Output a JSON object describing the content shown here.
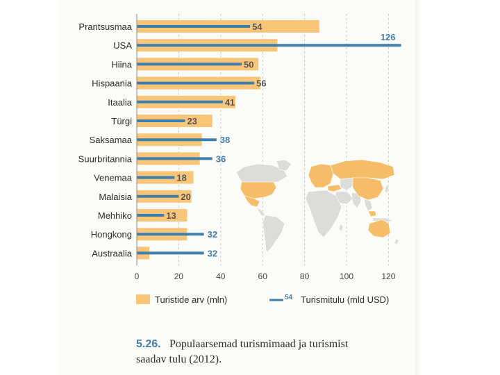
{
  "colors": {
    "bar_fill": "#f9c679",
    "line_color": "#3f7fae",
    "income_inside_label": "#555555",
    "income_outside_label": "#3f7fae",
    "map_land": "#dcdcd8",
    "map_highlight": "#f6bd68",
    "axis": "#888888",
    "grid": "#c9c9c9"
  },
  "chart_data": {
    "type": "bar",
    "categories": [
      "Prantsusmaa",
      "USA",
      "Hiina",
      "Hispaania",
      "Itaalia",
      "Türgi",
      "Saksamaa",
      "Suurbritannia",
      "Venemaa",
      "Malaisia",
      "Mehhiko",
      "Hongkong",
      "Austraalia"
    ],
    "series": [
      {
        "name": "Turistide arv (mln)",
        "kind": "bar",
        "values": [
          87,
          67,
          58,
          59,
          47,
          36,
          31,
          30,
          27,
          26,
          24,
          24,
          6
        ],
        "labeled": false
      },
      {
        "name": "Turismitulu (mld USD)",
        "kind": "line-marker",
        "values": [
          54,
          126,
          50,
          56,
          41,
          23,
          38,
          36,
          18,
          20,
          13,
          32,
          32
        ],
        "labeled": true
      }
    ],
    "x_ticks": [
      0,
      20,
      40,
      60,
      80,
      100,
      120
    ],
    "xlim": [
      0,
      130
    ],
    "grid": "vertical dashed",
    "legend_placement": "bottom",
    "xlabel": "",
    "ylabel": "",
    "title": ""
  },
  "legend": {
    "bar_label": "Turistide arv (mln)",
    "line_sample": "54",
    "line_label": "Turismitulu (mld USD)"
  },
  "caption": {
    "number": "5.26.",
    "line1": "Populaarsemad turismimaad ja turismist",
    "line2": "saadav tulu (2012)."
  },
  "map": {
    "highlighted_regions": [
      "USA",
      "Mehhiko",
      "Euroopa",
      "Türgi",
      "Venemaa",
      "Hiina",
      "Hongkong",
      "Malaisia",
      "Austraalia"
    ]
  }
}
